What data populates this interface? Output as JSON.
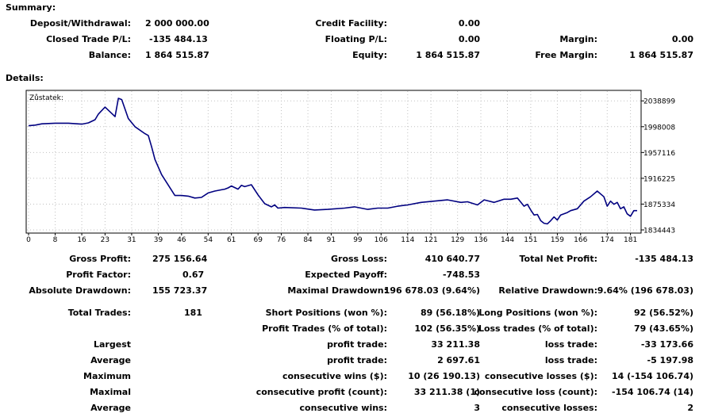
{
  "summary": {
    "title": "Summary:",
    "deposit_label": "Deposit/Withdrawal:",
    "deposit_value": "2 000 000.00",
    "credit_label": "Credit Facility:",
    "credit_value": "0.00",
    "closed_pl_label": "Closed Trade P/L:",
    "closed_pl_value": "-135 484.13",
    "floating_pl_label": "Floating P/L:",
    "floating_pl_value": "0.00",
    "margin_label": "Margin:",
    "margin_value": "0.00",
    "balance_label": "Balance:",
    "balance_value": "1 864 515.87",
    "equity_label": "Equity:",
    "equity_value": "1 864 515.87",
    "free_margin_label": "Free Margin:",
    "free_margin_value": "1 864 515.87"
  },
  "details": {
    "title": "Details:",
    "gross_profit_label": "Gross Profit:",
    "gross_profit_value": "275 156.64",
    "gross_loss_label": "Gross Loss:",
    "gross_loss_value": "410 640.77",
    "total_net_label": "Total Net Profit:",
    "total_net_value": "-135 484.13",
    "profit_factor_label": "Profit Factor:",
    "profit_factor_value": "0.67",
    "expected_payoff_label": "Expected Payoff:",
    "expected_payoff_value": "-748.53",
    "abs_dd_label": "Absolute Drawdown:",
    "abs_dd_value": "155 723.37",
    "max_dd_label": "Maximal Drawdown:",
    "max_dd_value": "196 678.03 (9.64%)",
    "rel_dd_label": "Relative Drawdown:",
    "rel_dd_value": "9.64% (196 678.03)",
    "total_trades_label": "Total Trades:",
    "total_trades_value": "181",
    "short_label": "Short Positions (won %):",
    "short_value": "89 (56.18%)",
    "long_label": "Long Positions (won %):",
    "long_value": "92 (56.52%)",
    "profit_trades_label": "Profit Trades (% of total):",
    "profit_trades_value": "102 (56.35%)",
    "loss_trades_label": "Loss trades (% of total):",
    "loss_trades_value": "79 (43.65%)",
    "largest_label": "Largest",
    "largest_profit_label": "profit trade:",
    "largest_profit_value": "33 211.38",
    "largest_loss_label": "loss trade:",
    "largest_loss_value": "-33 173.66",
    "average_label": "Average",
    "avg_profit_label": "profit trade:",
    "avg_profit_value": "2 697.61",
    "avg_loss_label": "loss trade:",
    "avg_loss_value": "-5 197.98",
    "maximum_label": "Maximum",
    "max_wins_label": "consecutive wins ($):",
    "max_wins_value": "10 (26 190.13)",
    "max_losses_label": "consecutive losses ($):",
    "max_losses_value": "14 (-154 106.74)",
    "maximal_label": "Maximal",
    "maximal_profit_label": "consecutive profit (count):",
    "maximal_profit_value": "33 211.38 (1)",
    "maximal_loss_label": "consecutive loss (count):",
    "maximal_loss_value": "-154 106.74 (14)",
    "average2_label": "Average",
    "avg_wins_label": "consecutive wins:",
    "avg_wins_value": "3",
    "avg_losses_label": "consecutive losses:",
    "avg_losses_value": "2"
  },
  "chart_data": {
    "type": "line",
    "title": "Zůstatek:",
    "xlabel": "",
    "ylabel": "",
    "xlim": [
      0,
      183
    ],
    "ylim": [
      1834443,
      2048000
    ],
    "x_ticks": [
      0,
      8,
      16,
      23,
      31,
      39,
      46,
      54,
      61,
      69,
      76,
      84,
      91,
      99,
      106,
      114,
      121,
      129,
      136,
      144,
      151,
      159,
      166,
      174,
      181
    ],
    "y_ticks": [
      2038899,
      1998008,
      1957116,
      1916225,
      1875334,
      1834443
    ],
    "grid": true,
    "line_color": "#000080",
    "series": [
      {
        "x": [
          0,
          2,
          4,
          8,
          12,
          16,
          18,
          20,
          21,
          23,
          25,
          26,
          27,
          28,
          30,
          32,
          35,
          36,
          37,
          38,
          40,
          44,
          46,
          48,
          50,
          52,
          54,
          56,
          58,
          59,
          60,
          61,
          63,
          64,
          65,
          67,
          69,
          71,
          73,
          74,
          75,
          77,
          82,
          86,
          90,
          95,
          98,
          102,
          105,
          108,
          111,
          114,
          118,
          122,
          126,
          130,
          132,
          135,
          137,
          140,
          143,
          145,
          147,
          149,
          150,
          151,
          152,
          153,
          154,
          155,
          156,
          157,
          158,
          159,
          160,
          162,
          163,
          165,
          167,
          169,
          171,
          173,
          174,
          175,
          176,
          177,
          178,
          179,
          180,
          181,
          182,
          183
        ],
        "y": [
          1999500,
          2000500,
          2002500,
          2003500,
          2003500,
          2002000,
          2004000,
          2009000,
          2018000,
          2029000,
          2019000,
          2014000,
          2043000,
          2041000,
          2011000,
          1998000,
          1987000,
          1984000,
          1966000,
          1946000,
          1922000,
          1889000,
          1889000,
          1888000,
          1885000,
          1886000,
          1893000,
          1896000,
          1898000,
          1899000,
          1901000,
          1904000,
          1899000,
          1905000,
          1903000,
          1906000,
          1890000,
          1876000,
          1871000,
          1874000,
          1869000,
          1870000,
          1869000,
          1866000,
          1867000,
          1869000,
          1871000,
          1867000,
          1869000,
          1869000,
          1872000,
          1874000,
          1878000,
          1880000,
          1882000,
          1878000,
          1879000,
          1874000,
          1882000,
          1878000,
          1883000,
          1883000,
          1885000,
          1872000,
          1875000,
          1866000,
          1858000,
          1859000,
          1849000,
          1845000,
          1844000,
          1849000,
          1855000,
          1850000,
          1858000,
          1862000,
          1865000,
          1868000,
          1880000,
          1887000,
          1896000,
          1887000,
          1872000,
          1880000,
          1875000,
          1878000,
          1868000,
          1871000,
          1860000,
          1856000,
          1865000,
          1865000
        ]
      }
    ]
  }
}
